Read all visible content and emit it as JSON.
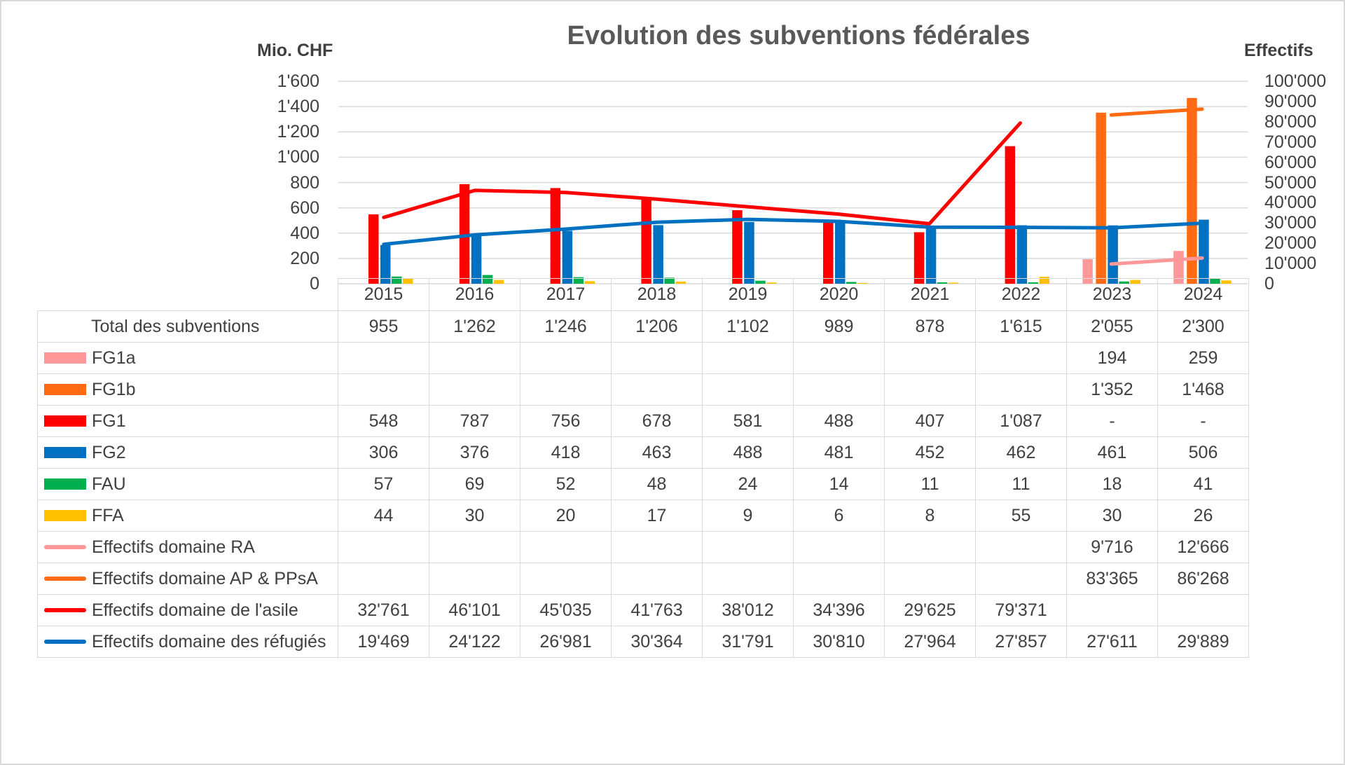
{
  "chart_data": {
    "type": "bar",
    "title": "Evolution des subventions fédérales",
    "y_left_label": "Mio. CHF",
    "y_right_label": "Effectifs",
    "y_left_ticks": [
      "0",
      "200",
      "400",
      "600",
      "800",
      "1'000",
      "1'200",
      "1'400",
      "1'600"
    ],
    "y_right_ticks": [
      "0",
      "10'000",
      "20'000",
      "30'000",
      "40'000",
      "50'000",
      "60'000",
      "70'000",
      "80'000",
      "90'000",
      "100'000"
    ],
    "ylim_left": [
      0,
      1600
    ],
    "ylim_right": [
      0,
      100000
    ],
    "categories": [
      "2015",
      "2016",
      "2017",
      "2018",
      "2019",
      "2020",
      "2021",
      "2022",
      "2023",
      "2024"
    ],
    "total_row": {
      "label": "Total des subventions",
      "display": [
        "955",
        "1'262",
        "1'246",
        "1'206",
        "1'102",
        "989",
        "878",
        "1'615",
        "2'055",
        "2'300"
      ]
    },
    "bar_series": [
      {
        "name": "FG1a",
        "color": "#ff9999",
        "values": [
          null,
          null,
          null,
          null,
          null,
          null,
          null,
          null,
          194,
          259
        ],
        "display": [
          "",
          "",
          "",
          "",
          "",
          "",
          "",
          "",
          "194",
          "259"
        ]
      },
      {
        "name": "FG1b",
        "color": "#ff6a13",
        "values": [
          null,
          null,
          null,
          null,
          null,
          null,
          null,
          null,
          1352,
          1468
        ],
        "display": [
          "",
          "",
          "",
          "",
          "",
          "",
          "",
          "",
          "1'352",
          "1'468"
        ]
      },
      {
        "name": "FG1",
        "color": "#ff0000",
        "values": [
          548,
          787,
          756,
          678,
          581,
          488,
          407,
          1087,
          null,
          null
        ],
        "display": [
          "548",
          "787",
          "756",
          "678",
          "581",
          "488",
          "407",
          "1'087",
          "-",
          "-"
        ]
      },
      {
        "name": "FG2",
        "color": "#0070c0",
        "values": [
          306,
          376,
          418,
          463,
          488,
          481,
          452,
          462,
          461,
          506
        ],
        "display": [
          "306",
          "376",
          "418",
          "463",
          "488",
          "481",
          "452",
          "462",
          "461",
          "506"
        ]
      },
      {
        "name": "FAU",
        "color": "#00b050",
        "values": [
          57,
          69,
          52,
          48,
          24,
          14,
          11,
          11,
          18,
          41
        ],
        "display": [
          "57",
          "69",
          "52",
          "48",
          "24",
          "14",
          "11",
          "11",
          "18",
          "41"
        ]
      },
      {
        "name": "FFA",
        "color": "#ffc000",
        "values": [
          44,
          30,
          20,
          17,
          9,
          6,
          8,
          55,
          30,
          26
        ],
        "display": [
          "44",
          "30",
          "20",
          "17",
          "9",
          "6",
          "8",
          "55",
          "30",
          "26"
        ]
      }
    ],
    "line_series": [
      {
        "name": "Effectifs domaine RA",
        "color": "#ff9999",
        "values": [
          null,
          null,
          null,
          null,
          null,
          null,
          null,
          null,
          9716,
          12666
        ],
        "display": [
          "",
          "",
          "",
          "",
          "",
          "",
          "",
          "",
          "9'716",
          "12'666"
        ]
      },
      {
        "name": "Effectifs domaine AP & PPsA",
        "color": "#ff6a13",
        "values": [
          null,
          null,
          null,
          null,
          null,
          null,
          null,
          null,
          83365,
          86268
        ],
        "display": [
          "",
          "",
          "",
          "",
          "",
          "",
          "",
          "",
          "83'365",
          "86'268"
        ]
      },
      {
        "name": "Effectifs domaine de l'asile",
        "color": "#ff0000",
        "values": [
          32761,
          46101,
          45035,
          41763,
          38012,
          34396,
          29625,
          79371,
          null,
          null
        ],
        "display": [
          "32'761",
          "46'101",
          "45'035",
          "41'763",
          "38'012",
          "34'396",
          "29'625",
          "79'371",
          "",
          ""
        ]
      },
      {
        "name": "Effectifs domaine des réfugiés",
        "color": "#0070c0",
        "values": [
          19469,
          24122,
          26981,
          30364,
          31791,
          30810,
          27964,
          27857,
          27611,
          29889
        ],
        "display": [
          "19'469",
          "24'122",
          "26'981",
          "30'364",
          "31'791",
          "30'810",
          "27'964",
          "27'857",
          "27'611",
          "29'889"
        ]
      }
    ],
    "grid": true
  }
}
